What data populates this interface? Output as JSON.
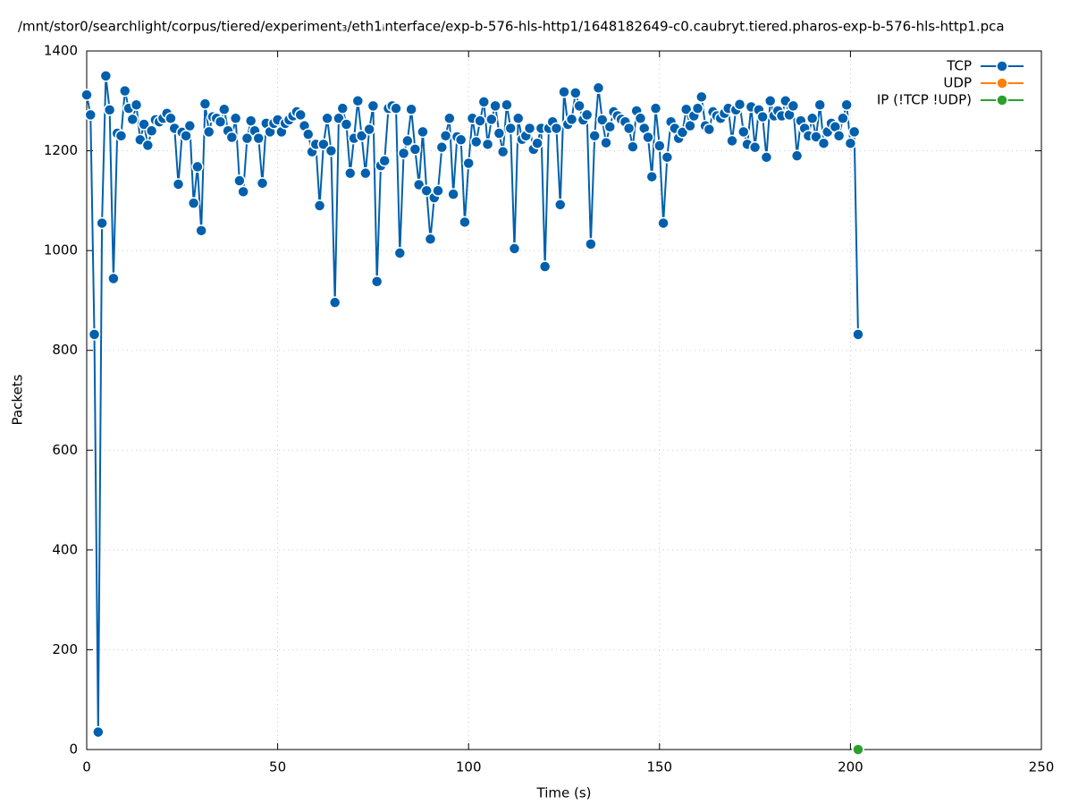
{
  "chart_data": {
    "type": "line",
    "title": "/mnt/stor0/searchlight/corpus/tiered/experiment₃/eth1ᵢnterface/exp-b-576-hls-http1/1648182649-c0.caubryt.tiered.pharos-exp-b-576-hls-http1.pca",
    "xlabel": "Time (s)",
    "ylabel": "Packets",
    "xlim": [
      0,
      250
    ],
    "xticks": [
      0,
      50,
      100,
      150,
      200,
      250
    ],
    "ylim": [
      0,
      1400
    ],
    "yticks": [
      0,
      200,
      400,
      600,
      800,
      1000,
      1200,
      1400
    ],
    "grid": true,
    "legend": "top-right",
    "series": [
      {
        "name": "TCP",
        "color": "#0060ad",
        "x": [
          0,
          1,
          2,
          3,
          4,
          5,
          6,
          7,
          8,
          9,
          10,
          11,
          12,
          13,
          14,
          15,
          16,
          17,
          18,
          19,
          20,
          21,
          22,
          23,
          24,
          25,
          26,
          27,
          28,
          29,
          30,
          31,
          32,
          33,
          34,
          35,
          36,
          37,
          38,
          39,
          40,
          41,
          42,
          43,
          44,
          45,
          46,
          47,
          48,
          49,
          50,
          51,
          52,
          53,
          54,
          55,
          56,
          57,
          58,
          59,
          60,
          61,
          62,
          63,
          64,
          65,
          66,
          67,
          68,
          69,
          70,
          71,
          72,
          73,
          74,
          75,
          76,
          77,
          78,
          79,
          80,
          81,
          82,
          83,
          84,
          85,
          86,
          87,
          88,
          89,
          90,
          91,
          92,
          93,
          94,
          95,
          96,
          97,
          98,
          99,
          100,
          101,
          102,
          103,
          104,
          105,
          106,
          107,
          108,
          109,
          110,
          111,
          112,
          113,
          114,
          115,
          116,
          117,
          118,
          119,
          120,
          121,
          122,
          123,
          124,
          125,
          126,
          127,
          128,
          129,
          130,
          131,
          132,
          133,
          134,
          135,
          136,
          137,
          138,
          139,
          140,
          141,
          142,
          143,
          144,
          145,
          146,
          147,
          148,
          149,
          150,
          151,
          152,
          153,
          154,
          155,
          156,
          157,
          158,
          159,
          160,
          161,
          162,
          163,
          164,
          165,
          166,
          167,
          168,
          169,
          170,
          171,
          172,
          173,
          174,
          175,
          176,
          177,
          178,
          179,
          180,
          181,
          182,
          183,
          184,
          185,
          186,
          187,
          188,
          189,
          190,
          191,
          192,
          193,
          194,
          195,
          196,
          197,
          198,
          199,
          200,
          201,
          202
        ],
        "values": [
          1312,
          1272,
          832,
          35,
          1055,
          1350,
          1282,
          944,
          1235,
          1230,
          1320,
          1285,
          1263,
          1292,
          1222,
          1253,
          1211,
          1240,
          1262,
          1258,
          1265,
          1275,
          1265,
          1245,
          1133,
          1237,
          1230,
          1250,
          1095,
          1168,
          1040,
          1294,
          1238,
          1268,
          1265,
          1258,
          1283,
          1240,
          1227,
          1265,
          1140,
          1118,
          1225,
          1260,
          1240,
          1225,
          1135,
          1255,
          1238,
          1255,
          1262,
          1238,
          1255,
          1262,
          1270,
          1278,
          1272,
          1250,
          1233,
          1198,
          1213,
          1090,
          1213,
          1265,
          1200,
          896,
          1265,
          1285,
          1253,
          1155,
          1225,
          1300,
          1230,
          1155,
          1243,
          1290,
          938,
          1170,
          1180,
          1285,
          1290,
          1285,
          995,
          1195,
          1220,
          1283,
          1203,
          1132,
          1238,
          1120,
          1023,
          1106,
          1120,
          1207,
          1230,
          1265,
          1113,
          1228,
          1222,
          1057,
          1175,
          1265,
          1218,
          1260,
          1298,
          1213,
          1263,
          1290,
          1235,
          1198,
          1292,
          1245,
          1004,
          1265,
          1223,
          1230,
          1245,
          1203,
          1215,
          1245,
          968,
          1245,
          1258,
          1245,
          1092,
          1318,
          1253,
          1263,
          1316,
          1290,
          1262,
          1272,
          1013,
          1230,
          1326,
          1262,
          1216,
          1248,
          1278,
          1270,
          1263,
          1258,
          1245,
          1208,
          1280,
          1265,
          1245,
          1227,
          1148,
          1285,
          1210,
          1055,
          1187,
          1258,
          1245,
          1225,
          1237,
          1283,
          1250,
          1270,
          1285,
          1308,
          1250,
          1243,
          1278,
          1270,
          1265,
          1275,
          1285,
          1220,
          1282,
          1293,
          1238,
          1213,
          1288,
          1207,
          1282,
          1268,
          1187,
          1300,
          1270,
          1280,
          1270,
          1300,
          1272,
          1290,
          1190,
          1260,
          1245,
          1230,
          1265,
          1228,
          1292,
          1215,
          1238,
          1255,
          1248,
          1230,
          1265,
          1292,
          1215,
          1238,
          832
        ]
      },
      {
        "name": "UDP",
        "color": "#ff7f0e",
        "x": [],
        "values": []
      },
      {
        "name": "IP (!TCP  !UDP)",
        "color": "#2ca02c",
        "x": [
          202
        ],
        "values": [
          0
        ]
      }
    ]
  }
}
